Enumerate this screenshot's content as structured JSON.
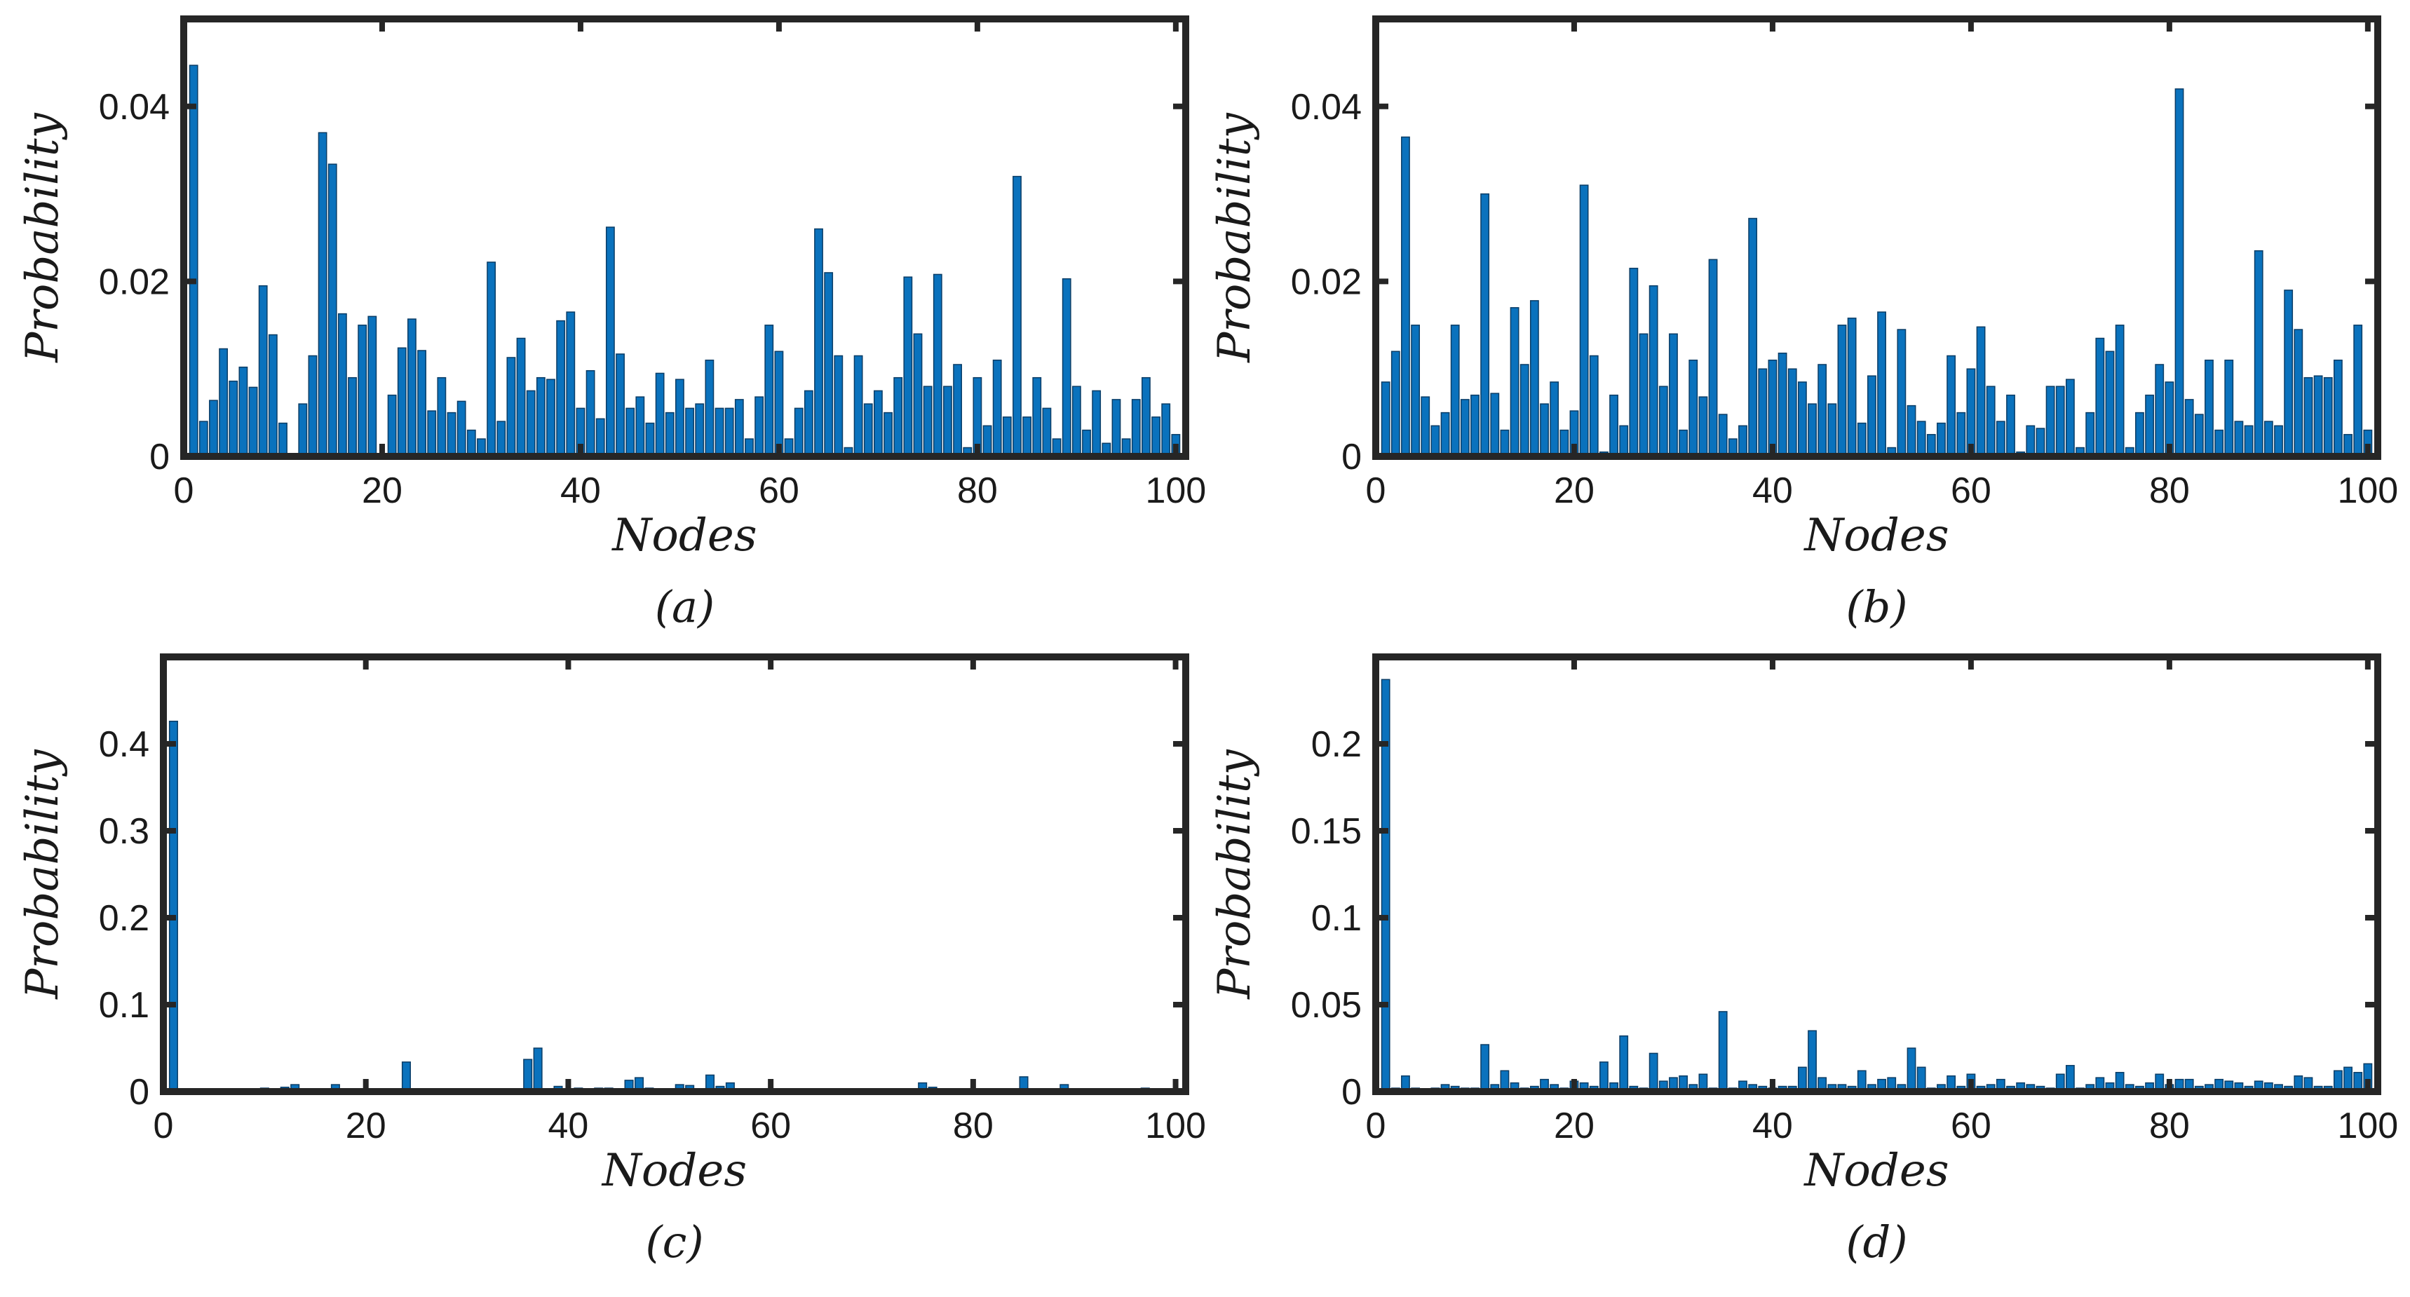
{
  "figure": {
    "panel_count": 4
  },
  "colors": {
    "bar": "#0a72bd",
    "bar_edge": "#0b3d66",
    "axes": "#262626",
    "text": "#1a1a1a"
  },
  "chart_data": [
    {
      "panel": "a",
      "type": "bar",
      "caption": "(a)",
      "xlabel": "Nodes",
      "ylabel": "Probability",
      "xlim": [
        0,
        101
      ],
      "ylim": [
        0,
        0.05
      ],
      "xticks": [
        0,
        20,
        40,
        60,
        80,
        100
      ],
      "xtick_labels": [
        "0",
        "20",
        "40",
        "60",
        "80",
        "100"
      ],
      "yticks": [
        0,
        0.02,
        0.04
      ],
      "ytick_labels": [
        "0",
        "0.02",
        "0.04"
      ],
      "x": [
        1,
        2,
        3,
        4,
        5,
        6,
        7,
        8,
        9,
        10,
        11,
        12,
        13,
        14,
        15,
        16,
        17,
        18,
        19,
        20,
        21,
        22,
        23,
        24,
        25,
        26,
        27,
        28,
        29,
        30,
        31,
        32,
        33,
        34,
        35,
        36,
        37,
        38,
        39,
        40,
        41,
        42,
        43,
        44,
        45,
        46,
        47,
        48,
        49,
        50,
        51,
        52,
        53,
        54,
        55,
        56,
        57,
        58,
        59,
        60,
        61,
        62,
        63,
        64,
        65,
        66,
        67,
        68,
        69,
        70,
        71,
        72,
        73,
        74,
        75,
        76,
        77,
        78,
        79,
        80,
        81,
        82,
        83,
        84,
        85,
        86,
        87,
        88,
        89,
        90,
        91,
        92,
        93,
        94,
        95,
        96,
        97,
        98,
        99,
        100
      ],
      "values": [
        0.0447,
        0.004,
        0.0064,
        0.0123,
        0.0086,
        0.0102,
        0.0079,
        0.0195,
        0.0139,
        0.0038,
        0.0,
        0.006,
        0.0115,
        0.037,
        0.0334,
        0.0163,
        0.009,
        0.015,
        0.016,
        0.0,
        0.007,
        0.0124,
        0.0157,
        0.0121,
        0.0052,
        0.009,
        0.005,
        0.0063,
        0.003,
        0.002,
        0.0222,
        0.004,
        0.0113,
        0.0135,
        0.0075,
        0.009,
        0.0088,
        0.0155,
        0.0165,
        0.0055,
        0.0098,
        0.0043,
        0.0262,
        0.0117,
        0.0055,
        0.0068,
        0.0038,
        0.0095,
        0.005,
        0.0088,
        0.0055,
        0.006,
        0.011,
        0.0055,
        0.0055,
        0.0065,
        0.002,
        0.0068,
        0.015,
        0.012,
        0.002,
        0.0055,
        0.0075,
        0.026,
        0.021,
        0.0115,
        0.001,
        0.0115,
        0.006,
        0.0075,
        0.005,
        0.009,
        0.0205,
        0.014,
        0.008,
        0.0208,
        0.008,
        0.0105,
        0.001,
        0.009,
        0.0035,
        0.011,
        0.0045,
        0.032,
        0.0045,
        0.009,
        0.0055,
        0.002,
        0.0203,
        0.008,
        0.003,
        0.0075,
        0.0015,
        0.0065,
        0.002,
        0.0065,
        0.009,
        0.0045,
        0.006,
        0.0025
      ]
    },
    {
      "panel": "b",
      "type": "bar",
      "caption": "(b)",
      "xlabel": "Nodes",
      "ylabel": "Probability",
      "xlim": [
        0,
        101
      ],
      "ylim": [
        0,
        0.05
      ],
      "xticks": [
        0,
        20,
        40,
        60,
        80,
        100
      ],
      "xtick_labels": [
        "0",
        "20",
        "40",
        "60",
        "80",
        "100"
      ],
      "yticks": [
        0,
        0.02,
        0.04
      ],
      "ytick_labels": [
        "0",
        "0.02",
        "0.04"
      ],
      "x": [
        1,
        2,
        3,
        4,
        5,
        6,
        7,
        8,
        9,
        10,
        11,
        12,
        13,
        14,
        15,
        16,
        17,
        18,
        19,
        20,
        21,
        22,
        23,
        24,
        25,
        26,
        27,
        28,
        29,
        30,
        31,
        32,
        33,
        34,
        35,
        36,
        37,
        38,
        39,
        40,
        41,
        42,
        43,
        44,
        45,
        46,
        47,
        48,
        49,
        50,
        51,
        52,
        53,
        54,
        55,
        56,
        57,
        58,
        59,
        60,
        61,
        62,
        63,
        64,
        65,
        66,
        67,
        68,
        69,
        70,
        71,
        72,
        73,
        74,
        75,
        76,
        77,
        78,
        79,
        80,
        81,
        82,
        83,
        84,
        85,
        86,
        87,
        88,
        89,
        90,
        91,
        92,
        93,
        94,
        95,
        96,
        97,
        98,
        99,
        100
      ],
      "values": [
        0.0085,
        0.012,
        0.0365,
        0.015,
        0.0068,
        0.0035,
        0.005,
        0.015,
        0.0065,
        0.007,
        0.03,
        0.0072,
        0.003,
        0.017,
        0.0105,
        0.0178,
        0.006,
        0.0085,
        0.003,
        0.0052,
        0.031,
        0.0115,
        0.0005,
        0.007,
        0.0035,
        0.0215,
        0.014,
        0.0195,
        0.008,
        0.014,
        0.003,
        0.011,
        0.0068,
        0.0225,
        0.0048,
        0.002,
        0.0035,
        0.0272,
        0.01,
        0.011,
        0.0118,
        0.01,
        0.0085,
        0.006,
        0.0105,
        0.006,
        0.015,
        0.0158,
        0.0038,
        0.0092,
        0.0165,
        0.001,
        0.0145,
        0.0058,
        0.004,
        0.0025,
        0.0038,
        0.0115,
        0.005,
        0.01,
        0.0148,
        0.008,
        0.004,
        0.007,
        0.0005,
        0.0035,
        0.0032,
        0.008,
        0.008,
        0.0088,
        0.001,
        0.005,
        0.0135,
        0.012,
        0.015,
        0.001,
        0.005,
        0.007,
        0.0105,
        0.0085,
        0.042,
        0.0065,
        0.0048,
        0.011,
        0.003,
        0.011,
        0.004,
        0.0035,
        0.0235,
        0.004,
        0.0035,
        0.019,
        0.0145,
        0.009,
        0.0092,
        0.009,
        0.011,
        0.0025,
        0.015,
        0.003
      ]
    },
    {
      "panel": "c",
      "type": "bar",
      "caption": "(c)",
      "xlabel": "Nodes",
      "ylabel": "Probability",
      "xlim": [
        0,
        101
      ],
      "ylim": [
        0,
        0.5
      ],
      "xticks": [
        0,
        20,
        40,
        60,
        80,
        100
      ],
      "xtick_labels": [
        "0",
        "20",
        "40",
        "60",
        "80",
        "100"
      ],
      "yticks": [
        0,
        0.1,
        0.2,
        0.3,
        0.4
      ],
      "ytick_labels": [
        "0",
        "0.1",
        "0.2",
        "0.3",
        "0.4"
      ],
      "x": [
        1,
        2,
        3,
        4,
        5,
        6,
        7,
        8,
        9,
        10,
        11,
        12,
        13,
        14,
        15,
        16,
        17,
        18,
        19,
        20,
        21,
        22,
        23,
        24,
        25,
        26,
        27,
        28,
        29,
        30,
        31,
        32,
        33,
        34,
        35,
        36,
        37,
        38,
        39,
        40,
        41,
        42,
        43,
        44,
        45,
        46,
        47,
        48,
        49,
        50,
        51,
        52,
        53,
        54,
        55,
        56,
        57,
        58,
        59,
        60,
        61,
        62,
        63,
        64,
        65,
        66,
        67,
        68,
        69,
        70,
        71,
        72,
        73,
        74,
        75,
        76,
        77,
        78,
        79,
        80,
        81,
        82,
        83,
        84,
        85,
        86,
        87,
        88,
        89,
        90,
        91,
        92,
        93,
        94,
        95,
        96,
        97,
        98,
        99,
        100
      ],
      "values": [
        0.426,
        0.001,
        0.001,
        0.001,
        0.001,
        0.001,
        0.001,
        0.002,
        0.001,
        0.004,
        0.003,
        0.005,
        0.008,
        0.003,
        0.002,
        0.001,
        0.008,
        0.002,
        0.001,
        0.001,
        0.001,
        0.002,
        0.002,
        0.034,
        0.001,
        0.001,
        0.001,
        0.001,
        0.002,
        0.001,
        0.001,
        0.001,
        0.001,
        0.002,
        0.003,
        0.037,
        0.05,
        0.003,
        0.006,
        0.002,
        0.004,
        0.002,
        0.004,
        0.004,
        0.003,
        0.013,
        0.016,
        0.004,
        0.002,
        0.001,
        0.008,
        0.007,
        0.002,
        0.019,
        0.006,
        0.01,
        0.003,
        0.002,
        0.001,
        0.002,
        0.001,
        0.002,
        0.001,
        0.001,
        0.002,
        0.001,
        0.003,
        0.001,
        0.001,
        0.001,
        0.002,
        0.002,
        0.001,
        0.002,
        0.01,
        0.005,
        0.002,
        0.001,
        0.001,
        0.002,
        0.001,
        0.001,
        0.001,
        0.002,
        0.017,
        0.001,
        0.002,
        0.002,
        0.008,
        0.001,
        0.001,
        0.002,
        0.002,
        0.001,
        0.002,
        0.002,
        0.004,
        0.003,
        0.001,
        0.001
      ]
    },
    {
      "panel": "d",
      "type": "bar",
      "caption": "(d)",
      "xlabel": "Nodes",
      "ylabel": "Probability",
      "xlim": [
        0,
        101
      ],
      "ylim": [
        0,
        0.25
      ],
      "xticks": [
        0,
        20,
        40,
        60,
        80,
        100
      ],
      "xtick_labels": [
        "0",
        "20",
        "40",
        "60",
        "80",
        "100"
      ],
      "yticks": [
        0,
        0.05,
        0.1,
        0.15,
        0.2
      ],
      "ytick_labels": [
        "0",
        "0.05",
        "0.1",
        "0.15",
        "0.2"
      ],
      "x": [
        1,
        2,
        3,
        4,
        5,
        6,
        7,
        8,
        9,
        10,
        11,
        12,
        13,
        14,
        15,
        16,
        17,
        18,
        19,
        20,
        21,
        22,
        23,
        24,
        25,
        26,
        27,
        28,
        29,
        30,
        31,
        32,
        33,
        34,
        35,
        36,
        37,
        38,
        39,
        40,
        41,
        42,
        43,
        44,
        45,
        46,
        47,
        48,
        49,
        50,
        51,
        52,
        53,
        54,
        55,
        56,
        57,
        58,
        59,
        60,
        61,
        62,
        63,
        64,
        65,
        66,
        67,
        68,
        69,
        70,
        71,
        72,
        73,
        74,
        75,
        76,
        77,
        78,
        79,
        80,
        81,
        82,
        83,
        84,
        85,
        86,
        87,
        88,
        89,
        90,
        91,
        92,
        93,
        94,
        95,
        96,
        97,
        98,
        99,
        100
      ],
      "values": [
        0.237,
        0.002,
        0.009,
        0.002,
        0.001,
        0.002,
        0.004,
        0.003,
        0.002,
        0.002,
        0.027,
        0.004,
        0.012,
        0.005,
        0.002,
        0.003,
        0.007,
        0.004,
        0.002,
        0.006,
        0.005,
        0.003,
        0.017,
        0.005,
        0.032,
        0.003,
        0.002,
        0.022,
        0.006,
        0.008,
        0.009,
        0.004,
        0.01,
        0.002,
        0.046,
        0.002,
        0.006,
        0.004,
        0.003,
        0.002,
        0.003,
        0.003,
        0.014,
        0.035,
        0.008,
        0.004,
        0.004,
        0.003,
        0.012,
        0.004,
        0.007,
        0.008,
        0.004,
        0.025,
        0.014,
        0.002,
        0.004,
        0.009,
        0.003,
        0.01,
        0.003,
        0.004,
        0.007,
        0.003,
        0.005,
        0.004,
        0.003,
        0.002,
        0.01,
        0.015,
        0.002,
        0.004,
        0.008,
        0.005,
        0.011,
        0.004,
        0.003,
        0.005,
        0.01,
        0.004,
        0.007,
        0.007,
        0.003,
        0.004,
        0.007,
        0.006,
        0.005,
        0.003,
        0.006,
        0.005,
        0.004,
        0.003,
        0.009,
        0.008,
        0.003,
        0.003,
        0.012,
        0.014,
        0.011,
        0.016
      ]
    }
  ]
}
